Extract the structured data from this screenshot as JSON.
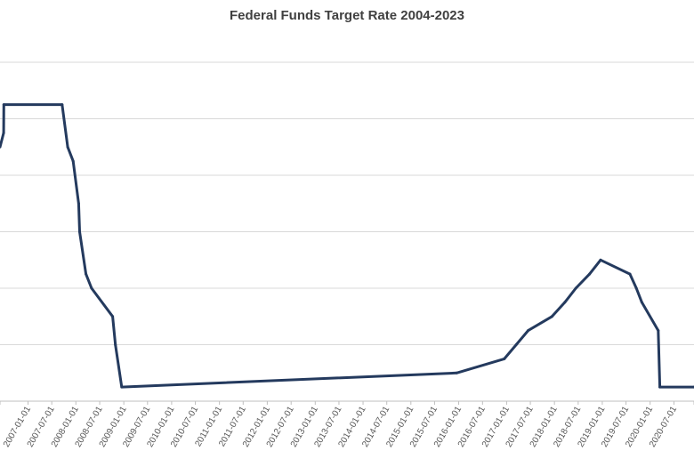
{
  "chart_data": {
    "type": "line",
    "title": "Federal Funds Target Rate 2004-2023",
    "xlabel": "",
    "ylabel": "",
    "x_range": [
      "2006-06-01",
      "2020-12-01"
    ],
    "ylim": [
      0,
      6
    ],
    "ygrid_step": 1,
    "grid": "horizontal",
    "legend": "none",
    "tick_labels": [
      "2007-01-01",
      "2007-07-01",
      "2008-01-01",
      "2008-07-01",
      "2009-01-01",
      "2009-07-01",
      "2010-01-01",
      "2010-07-01",
      "2011-01-01",
      "2011-07-01",
      "2012-01-01",
      "2012-07-01",
      "2013-01-01",
      "2013-07-01",
      "2014-01-01",
      "2014-07-01",
      "2015-01-01",
      "2015-07-01",
      "2016-01-01",
      "2016-07-01",
      "2017-01-01",
      "2017-07-01",
      "2018-01-01",
      "2018-07-01",
      "2019-01-01",
      "2019-07-01",
      "2020-01-01",
      "2020-07-01"
    ],
    "series": [
      {
        "color": "#243a5e",
        "points": [
          [
            "2006-06-01",
            4.5
          ],
          [
            "2006-06-29",
            4.75
          ],
          [
            "2006-06-30",
            5.25
          ],
          [
            "2007-09-18",
            5.25
          ],
          [
            "2007-10-31",
            4.5
          ],
          [
            "2007-12-11",
            4.25
          ],
          [
            "2008-01-22",
            3.5
          ],
          [
            "2008-01-30",
            3.0
          ],
          [
            "2008-03-18",
            2.25
          ],
          [
            "2008-04-30",
            2.0
          ],
          [
            "2008-10-08",
            1.5
          ],
          [
            "2008-10-29",
            1.0
          ],
          [
            "2008-12-16",
            0.25
          ],
          [
            "2015-12-16",
            0.5
          ],
          [
            "2016-12-14",
            0.75
          ],
          [
            "2017-03-15",
            1.0
          ],
          [
            "2017-06-14",
            1.25
          ],
          [
            "2017-12-13",
            1.5
          ],
          [
            "2018-03-21",
            1.75
          ],
          [
            "2018-06-13",
            2.0
          ],
          [
            "2018-09-26",
            2.25
          ],
          [
            "2018-12-19",
            2.5
          ],
          [
            "2019-07-31",
            2.25
          ],
          [
            "2019-09-18",
            2.0
          ],
          [
            "2019-10-30",
            1.75
          ],
          [
            "2020-03-03",
            1.25
          ],
          [
            "2020-03-15",
            0.25
          ],
          [
            "2020-12-01",
            0.25
          ]
        ]
      }
    ]
  }
}
